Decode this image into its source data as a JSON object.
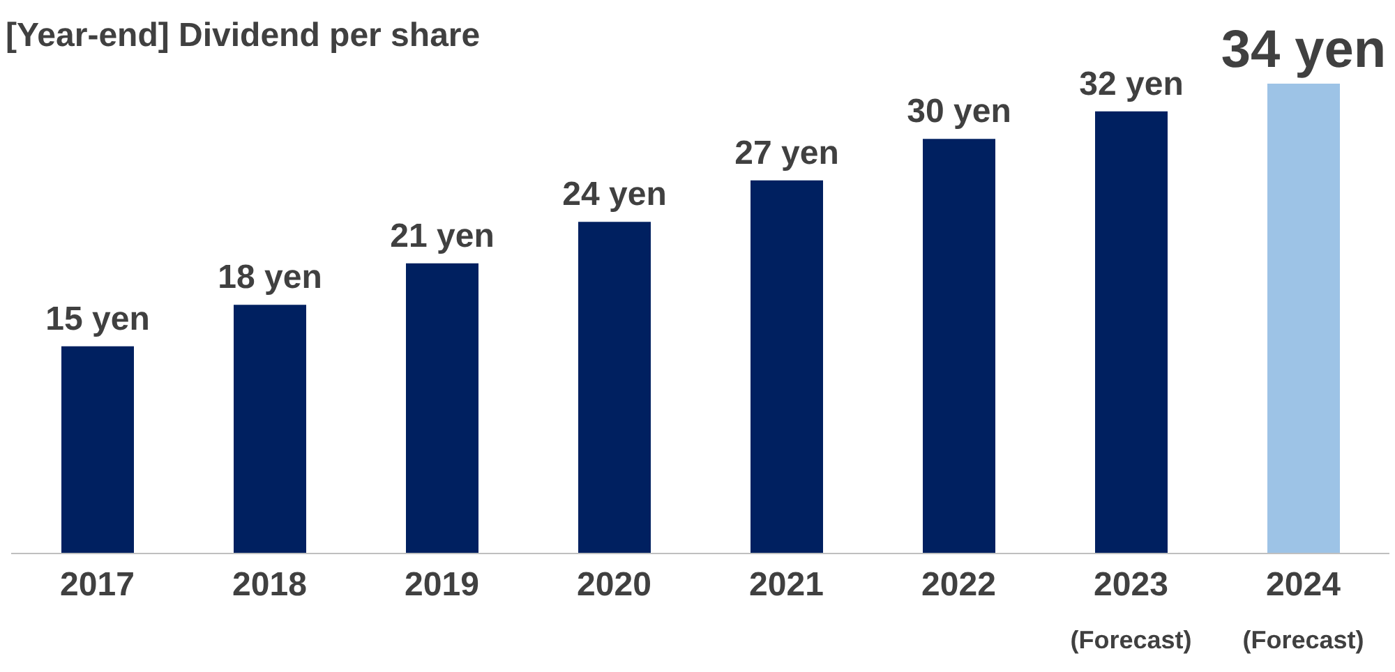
{
  "chart_data": {
    "type": "bar",
    "title": "[Year-end] Dividend per share",
    "categories": [
      "2017",
      "2018",
      "2019",
      "2020",
      "2021",
      "2022",
      "2023\n(Forecast)",
      "2024\n(Forecast)"
    ],
    "values": [
      15,
      18,
      21,
      24,
      27,
      30,
      32,
      34
    ],
    "colors": [
      "#002060",
      "#002060",
      "#002060",
      "#002060",
      "#002060",
      "#002060",
      "#002060",
      "#9dc3e6"
    ],
    "value_labels": [
      "15 yen",
      "18 yen",
      "21 yen",
      "24 yen",
      "27 yen",
      "30 yen",
      "32 yen",
      "34 yen"
    ],
    "tick_labels": "x"
  }
}
